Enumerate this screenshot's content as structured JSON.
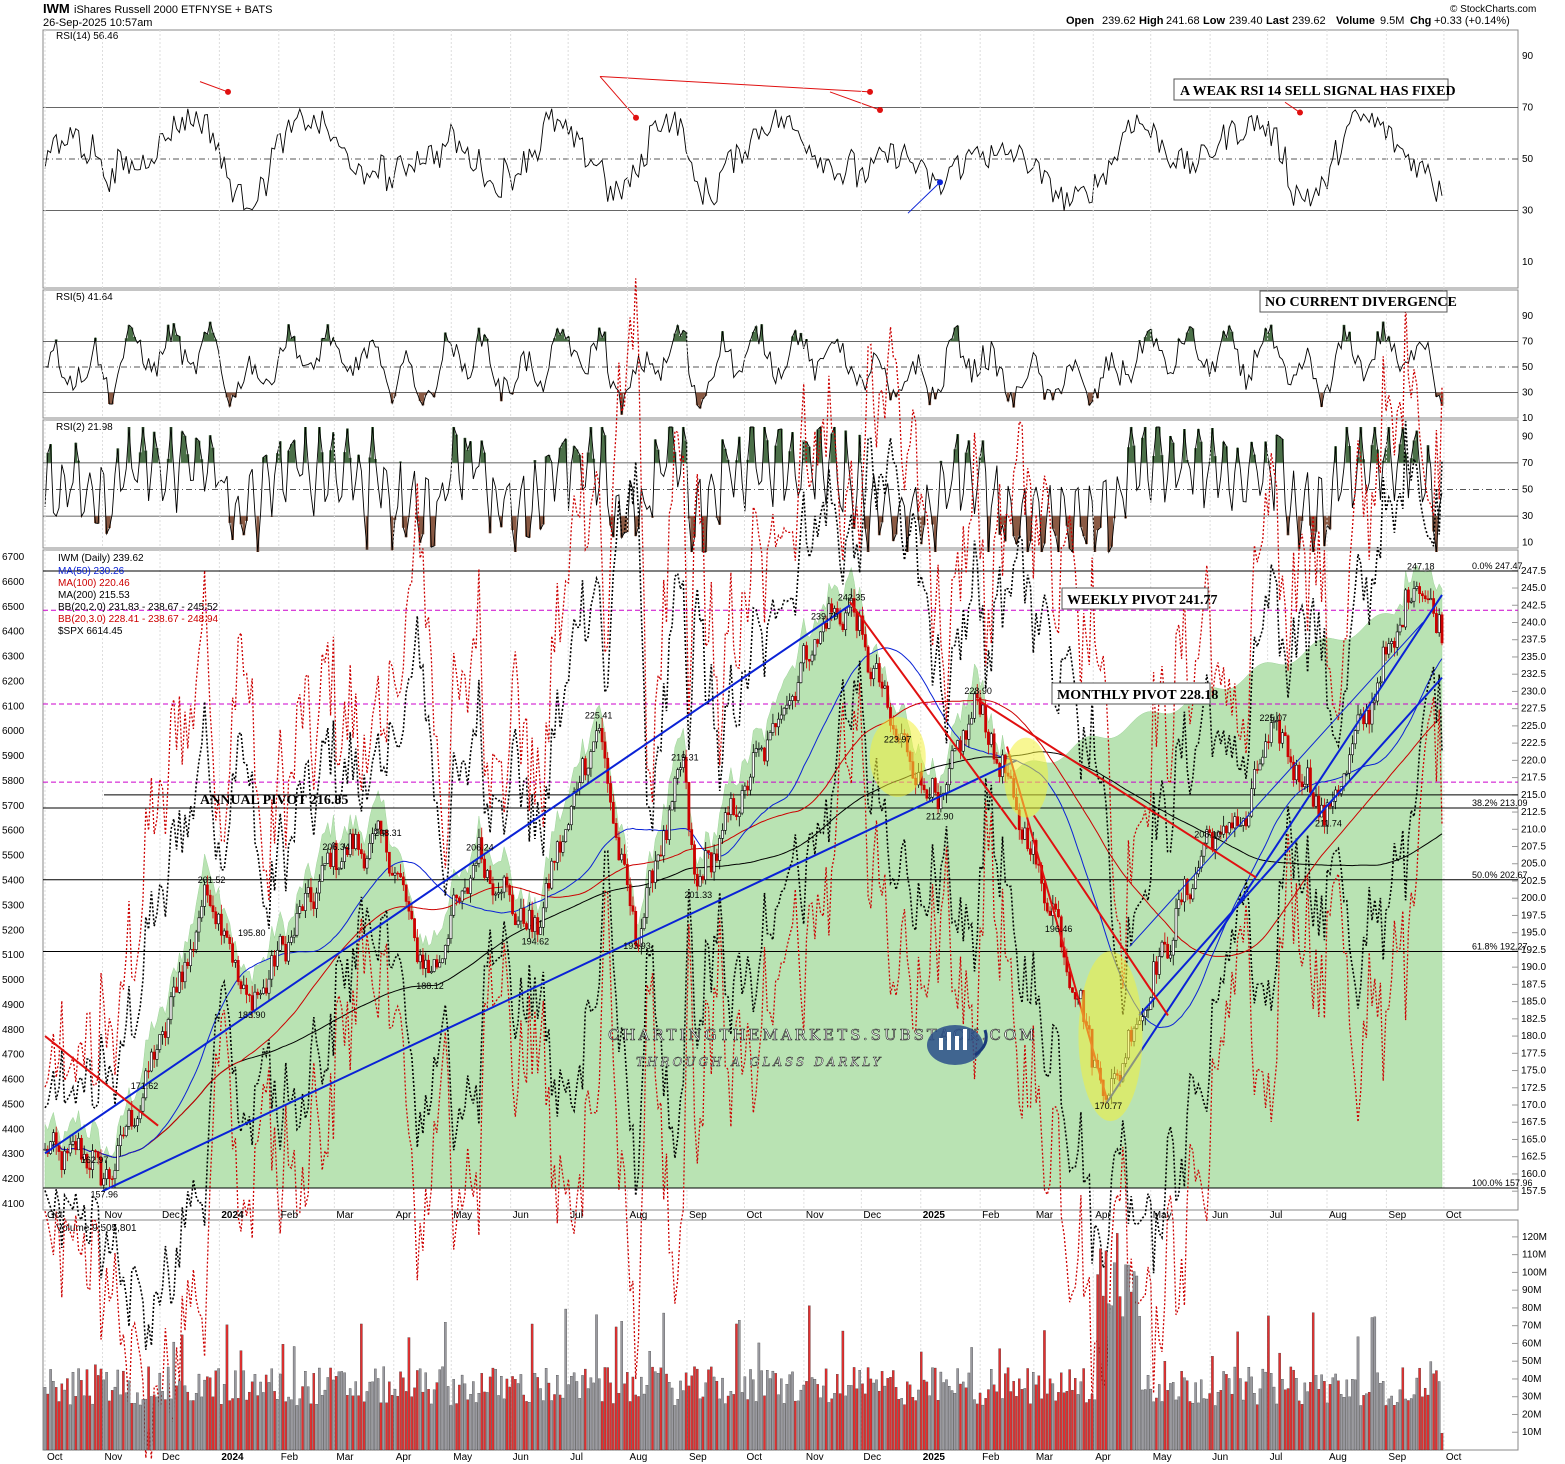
{
  "header": {
    "symbol": "IWM",
    "name": "iShares Russell 2000 ETF",
    "exchange": "NYSE + BATS",
    "datetime": "26-Sep-2025 10:57am",
    "open_label": "Open",
    "open": "239.62",
    "high_label": "High",
    "high": "241.68",
    "low_label": "Low",
    "low": "239.40",
    "last_label": "Last",
    "last": "239.62",
    "volume_label": "Volume",
    "volume": "9.5M",
    "chg_label": "Chg",
    "chg": "+0.33 (+0.14%)",
    "credit": "© StockCharts.com"
  },
  "panels": {
    "rsi14": {
      "label": "RSI(14) 56.46",
      "levels": [
        "90",
        "70",
        "50",
        "30",
        "10"
      ],
      "annotation": "A WEAK RSI 14 SELL SIGNAL HAS FIXED"
    },
    "rsi5": {
      "label": "RSI(5) 41.64",
      "levels": [
        "90",
        "70",
        "50",
        "30",
        "10"
      ],
      "annotation": "NO CURRENT DIVERGENCE"
    },
    "rsi2": {
      "label": "RSI(2) 21.98",
      "levels": [
        "90",
        "70",
        "50",
        "30",
        "10"
      ]
    },
    "price": {
      "legend": [
        "IWM (Daily) 239.62",
        "MA(50) 230.26",
        "MA(100) 220.46",
        "MA(200) 215.53",
        "BB(20,2.0) 231.83 - 238.67 - 245.52",
        "BB(20,3.0) 228.41 - 238.67 - 248.94",
        "$SPX 6614.45"
      ],
      "left_axis": [
        "6700",
        "6600",
        "6500",
        "6400",
        "6300",
        "6200",
        "6100",
        "6000",
        "5900",
        "5800",
        "5700",
        "5600",
        "5500",
        "5400",
        "5300",
        "5200",
        "5100",
        "5000",
        "4900",
        "4800",
        "4700",
        "4600",
        "4500",
        "4400",
        "4300",
        "4200",
        "4100"
      ],
      "right_axis": [
        "247.5",
        "245.0",
        "242.5",
        "240.0",
        "237.5",
        "235.0",
        "232.5",
        "230.0",
        "227.5",
        "225.0",
        "222.5",
        "220.0",
        "217.5",
        "215.0",
        "212.5",
        "210.0",
        "207.5",
        "205.0",
        "202.5",
        "200.0",
        "197.5",
        "195.0",
        "192.5",
        "190.0",
        "187.5",
        "185.0",
        "182.5",
        "180.0",
        "177.5",
        "175.0",
        "172.5",
        "170.0",
        "167.5",
        "165.0",
        "162.5",
        "160.0",
        "157.5"
      ],
      "annotations": {
        "weekly": "WEEKLY PIVOT 241.77",
        "monthly": "MONTHLY PIVOT 228.18",
        "annual": "ANNUAL PIVOT 216.85"
      },
      "fib": [
        "0.0% 247.47",
        "38.2% 213.09",
        "50.0% 202.67",
        "61.8% 192.27",
        "100.0% 157.96"
      ],
      "price_labels": [
        "247.18",
        "242.35",
        "239.79",
        "228.90",
        "223.97",
        "225.41",
        "219.31",
        "212.90",
        "208.10",
        "211.74",
        "225.07",
        "206.34",
        "208.31",
        "206.24",
        "201.52",
        "201.33",
        "195.80",
        "194.62",
        "193.93",
        "183.90",
        "188.12",
        "196.46",
        "171.62",
        "162.97",
        "157.96",
        "170.77"
      ],
      "watermark": {
        "line1": "CHARTINGTHEMARKETS.SUBSTACK.COM",
        "line2": "THROUGH A GLASS DARKLY"
      }
    },
    "volume": {
      "label": "Volume 9,505,801",
      "axis": [
        "120M",
        "110M",
        "100M",
        "90M",
        "80M",
        "70M",
        "60M",
        "50M",
        "40M",
        "30M",
        "20M",
        "10M"
      ]
    }
  },
  "x_axis": [
    "Oct",
    "Nov",
    "Dec",
    "2024",
    "Feb",
    "Mar",
    "Apr",
    "May",
    "Jun",
    "Jul",
    "Aug",
    "Sep",
    "Oct",
    "Nov",
    "Dec",
    "2025",
    "Feb",
    "Mar",
    "Apr",
    "May",
    "Jun",
    "Jul",
    "Aug",
    "Sep",
    "Oct"
  ],
  "colors": {
    "up": "#000000",
    "down": "#cc0000",
    "spx_fill": "#b9e3b3",
    "rsi_over": "#4b7048",
    "rsi_under": "#8a5a44",
    "pivot": "#cc00cc",
    "trend_blue": "#0a22d6",
    "trend_red": "#e01010",
    "annotation_bg": "#ffffff"
  },
  "chart_data": [
    {
      "type": "line",
      "title": "IWM iShares Russell 2000 ETF (Daily)",
      "x_range": [
        "Oct 2023",
        "Sep 2025"
      ],
      "series": [
        {
          "name": "IWM (Daily)",
          "points": [
            [
              "2023-10-27",
              162.97
            ],
            [
              "2023-11-01",
              157.96
            ],
            [
              "2023-11-22",
              171.62
            ],
            [
              "2023-12-27",
              201.52
            ],
            [
              "2024-01-17",
              183.9
            ],
            [
              "2024-03-01",
              206.34
            ],
            [
              "2024-03-28",
              208.31
            ],
            [
              "2024-04-19",
              188.12
            ],
            [
              "2024-05-15",
              206.24
            ],
            [
              "2024-06-13",
              194.62
            ],
            [
              "2024-07-16",
              225.41
            ],
            [
              "2024-08-05",
              193.93
            ],
            [
              "2024-08-30",
              219.31
            ],
            [
              "2024-09-06",
              201.33
            ],
            [
              "2024-11-11",
              239.79
            ],
            [
              "2024-11-25",
              242.35
            ],
            [
              "2024-12-19",
              223.97
            ],
            [
              "2025-01-10",
              212.9
            ],
            [
              "2025-01-30",
              228.9
            ],
            [
              "2025-03-13",
              196.46
            ],
            [
              "2025-04-08",
              170.77
            ],
            [
              "2025-05-30",
              208.1
            ],
            [
              "2025-06-20",
              211.74
            ],
            [
              "2025-07-03",
              225.07
            ],
            [
              "2025-08-01",
              211.74
            ],
            [
              "2025-09-18",
              247.18
            ],
            [
              "2025-09-26",
              239.62
            ]
          ]
        }
      ],
      "pivots": {
        "weekly": 241.77,
        "monthly": 228.18,
        "annual": 216.85
      },
      "moving_averages": {
        "MA(50)": 230.26,
        "MA(100)": 220.46,
        "MA(200)": 215.53
      },
      "bollinger": {
        "BB(20,2.0)": [
          231.83,
          238.67,
          245.52
        ],
        "BB(20,3.0)": [
          228.41,
          238.67,
          248.94
        ]
      },
      "comparison": {
        "$SPX": 6614.45
      },
      "ylim": [
        156,
        249
      ],
      "y2lim": [
        4080,
        6720
      ]
    },
    {
      "type": "line",
      "title": "RSI(14)",
      "last": 56.46,
      "ylim": [
        0,
        100
      ]
    },
    {
      "type": "line",
      "title": "RSI(5)",
      "last": 41.64,
      "ylim": [
        0,
        100
      ]
    },
    {
      "type": "line",
      "title": "RSI(2)",
      "last": 21.98,
      "ylim": [
        0,
        100
      ]
    },
    {
      "type": "bar",
      "title": "Volume",
      "last": 9505801,
      "ylim": [
        0,
        125000000
      ]
    }
  ]
}
